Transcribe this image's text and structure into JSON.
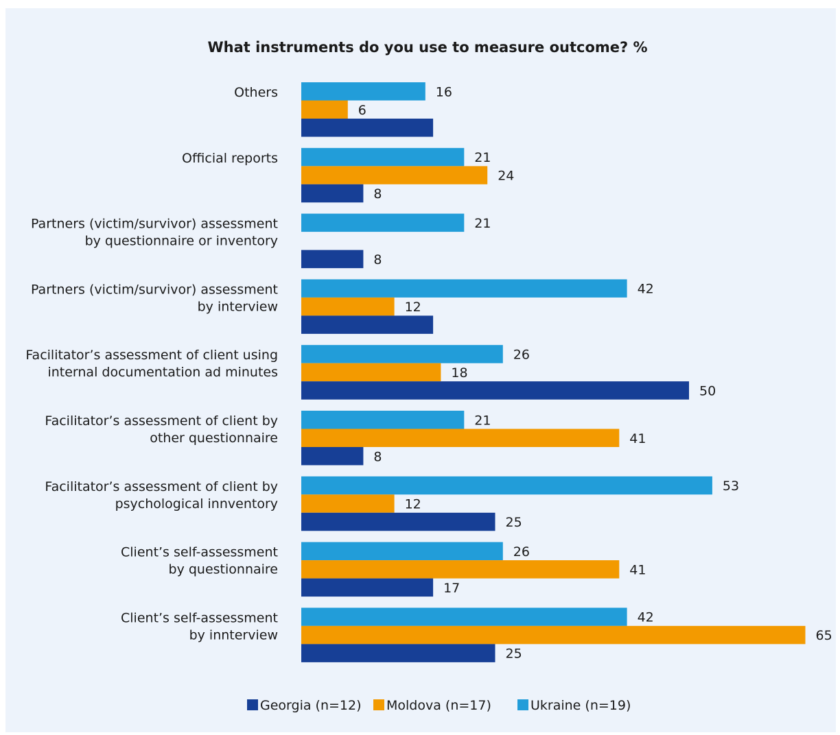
{
  "chart_data": {
    "type": "bar",
    "orientation": "horizontal",
    "title": "What instruments do you use to measure outcome? %",
    "categories": [
      [
        "Others"
      ],
      [
        "Official reports"
      ],
      [
        "Partners (victim/survivor) assessment",
        "by questionnaire or inventory"
      ],
      [
        "Partners (victim/survivor) assessment",
        "by interview"
      ],
      [
        "Facilitator’s assessment of client using",
        "internal documentation ad minutes"
      ],
      [
        "Facilitator’s assessment of client by",
        "other questionnaire"
      ],
      [
        "Facilitator’s assessment of client by",
        "psychological innventory"
      ],
      [
        "Client’s self-assessment",
        "by questionnaire"
      ],
      [
        "Client’s self-assessment",
        "by innterview"
      ]
    ],
    "series": [
      {
        "name": "Ukraine (n=19)",
        "color": "#229dd9",
        "values": [
          16,
          21,
          21,
          42,
          26,
          21,
          53,
          26,
          42
        ],
        "labels": [
          "16",
          "21",
          "21",
          "42",
          "26",
          "21",
          "53",
          "26",
          "42"
        ]
      },
      {
        "name": "Moldova (n=17)",
        "color": "#f39a00",
        "values": [
          6,
          24,
          0,
          12,
          18,
          41,
          12,
          41,
          65
        ],
        "labels": [
          "6",
          "24",
          "",
          "12",
          "18",
          "41",
          "12",
          "41",
          "65"
        ]
      },
      {
        "name": "Georgia (n=12)",
        "color": "#173f96",
        "values": [
          17,
          8,
          8,
          17,
          50,
          8,
          25,
          17,
          25
        ],
        "labels": [
          "",
          "8",
          "8",
          "",
          "50",
          "8",
          "25",
          "17",
          "25"
        ]
      }
    ],
    "legend": {
      "position": "bottom",
      "order": [
        "Georgia (n=12)",
        "Moldova (n=17)",
        "Ukraine (n=19)"
      ]
    },
    "xlim": [
      0,
      65
    ],
    "grid": false
  }
}
